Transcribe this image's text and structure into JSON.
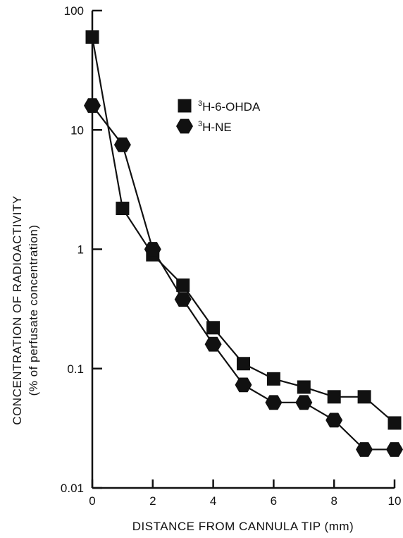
{
  "chart_data": {
    "type": "line",
    "x_scale": "linear",
    "y_scale": "log",
    "xlim": [
      0,
      10
    ],
    "ylim": [
      0.01,
      100
    ],
    "x_ticks": [
      0,
      2,
      4,
      6,
      8,
      10
    ],
    "x_tick_labels": [
      "0",
      "2",
      "4",
      "6",
      "8",
      "10"
    ],
    "y_ticks": [
      0.01,
      0.1,
      1,
      10,
      100
    ],
    "y_tick_labels": [
      "0.01",
      "0.1",
      "1",
      "10",
      "100"
    ],
    "xlabel": "DISTANCE FROM CANNULA TIP (mm)",
    "ylabel": "CONCENTRATION OF RADIOACTIVITY",
    "ylabel_sub": "(% of perfusate concentration)",
    "grid": false,
    "legend_position": "top-right",
    "series": [
      {
        "name_sup": "3",
        "name_main": "H-6-OHDA",
        "marker": "square",
        "x": [
          0,
          1,
          2,
          3,
          4,
          5,
          6,
          7,
          8,
          9,
          10
        ],
        "y": [
          60,
          2.2,
          0.9,
          0.5,
          0.22,
          0.11,
          0.082,
          0.07,
          0.058,
          0.058,
          0.035
        ]
      },
      {
        "name_sup": "3",
        "name_main": "H-NE",
        "marker": "hexagon",
        "x": [
          0,
          1,
          2,
          3,
          4,
          5,
          6,
          7,
          8,
          9,
          10
        ],
        "y": [
          16,
          7.5,
          1.0,
          0.38,
          0.16,
          0.073,
          0.052,
          0.052,
          0.037,
          0.021,
          0.021
        ]
      }
    ]
  }
}
